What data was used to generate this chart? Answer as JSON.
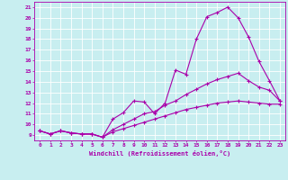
{
  "xlabel": "Windchill (Refroidissement éolien,°C)",
  "xlim": [
    -0.5,
    23.5
  ],
  "ylim": [
    8.5,
    21.5
  ],
  "yticks": [
    9,
    10,
    11,
    12,
    13,
    14,
    15,
    16,
    17,
    18,
    19,
    20,
    21
  ],
  "xticks": [
    0,
    1,
    2,
    3,
    4,
    5,
    6,
    7,
    8,
    9,
    10,
    11,
    12,
    13,
    14,
    15,
    16,
    17,
    18,
    19,
    20,
    21,
    22,
    23
  ],
  "bg_color": "#c8eef0",
  "line_color": "#aa00aa",
  "grid_color": "#ffffff",
  "line1_x": [
    0,
    1,
    2,
    3,
    4,
    5,
    6,
    7,
    8,
    9,
    10,
    11,
    12,
    13,
    14,
    15,
    16,
    17,
    18,
    19,
    20,
    21,
    22,
    23
  ],
  "line1_y": [
    9.4,
    9.1,
    9.4,
    9.2,
    9.1,
    9.1,
    8.8,
    10.5,
    11.1,
    12.2,
    12.1,
    11.0,
    12.0,
    15.1,
    14.7,
    18.0,
    20.1,
    20.5,
    21.0,
    20.0,
    18.2,
    15.9,
    14.1,
    12.2
  ],
  "line2_x": [
    0,
    1,
    2,
    3,
    4,
    5,
    6,
    7,
    8,
    9,
    10,
    11,
    12,
    13,
    14,
    15,
    16,
    17,
    18,
    19,
    20,
    21,
    22,
    23
  ],
  "line2_y": [
    9.4,
    9.1,
    9.4,
    9.2,
    9.1,
    9.1,
    8.8,
    9.5,
    10.0,
    10.5,
    11.0,
    11.2,
    11.8,
    12.2,
    12.8,
    13.3,
    13.8,
    14.2,
    14.5,
    14.8,
    14.1,
    13.5,
    13.2,
    12.2
  ],
  "line3_x": [
    0,
    1,
    2,
    3,
    4,
    5,
    6,
    7,
    8,
    9,
    10,
    11,
    12,
    13,
    14,
    15,
    16,
    17,
    18,
    19,
    20,
    21,
    22,
    23
  ],
  "line3_y": [
    9.4,
    9.1,
    9.4,
    9.2,
    9.1,
    9.1,
    8.8,
    9.3,
    9.6,
    9.9,
    10.2,
    10.5,
    10.8,
    11.1,
    11.4,
    11.6,
    11.8,
    12.0,
    12.1,
    12.2,
    12.1,
    12.0,
    11.9,
    11.9
  ]
}
